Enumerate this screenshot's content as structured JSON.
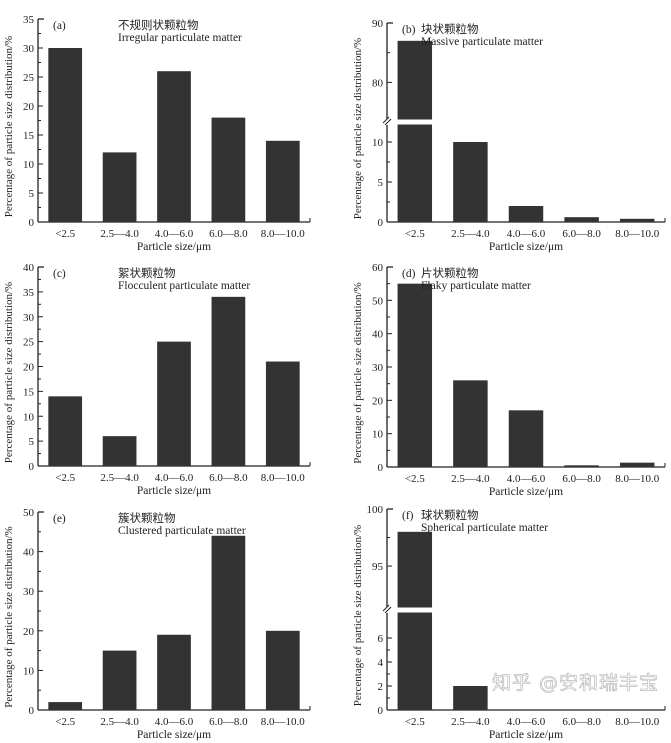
{
  "chart_data": [
    {
      "type": "bar",
      "panel": "(a)",
      "title_cn": "不规则状颗粒物",
      "title": "Irregular particulate matter",
      "categories": [
        "<2.5",
        "2.5—4.0",
        "4.0—6.0",
        "6.0—8.0",
        "8.0—10.0"
      ],
      "values": [
        30,
        12,
        26,
        18,
        14
      ],
      "xlabel": "Particle size/μm",
      "ylabel": "Percentage of particle size distribution/%",
      "ylim": [
        0,
        35
      ],
      "yticks": [
        0,
        5,
        10,
        15,
        20,
        25,
        30,
        35
      ]
    },
    {
      "type": "bar",
      "panel": "(b)",
      "title_cn": "块状颗粒物",
      "title": "Massive particulate matter",
      "categories": [
        "<2.5",
        "2.5—4.0",
        "4.0—6.0",
        "6.0—8.0",
        "8.0—10.0"
      ],
      "values": [
        87,
        10,
        2,
        0.6,
        0.4
      ],
      "xlabel": "Particle size/μm",
      "ylabel": "Percentage of particle size distribution/%",
      "ylim": [
        0,
        90
      ],
      "axis_break": [
        12,
        74
      ],
      "yticks": [
        0,
        5,
        10,
        80,
        90
      ]
    },
    {
      "type": "bar",
      "panel": "(c)",
      "title_cn": "絮状颗粒物",
      "title": "Flocculent particulate matter",
      "categories": [
        "<2.5",
        "2.5—4.0",
        "4.0—6.0",
        "6.0—8.0",
        "8.0—10.0"
      ],
      "values": [
        14,
        6,
        25,
        34,
        21
      ],
      "xlabel": "Particle size/μm",
      "ylabel": "Percentage of particle size distribution/%",
      "ylim": [
        0,
        40
      ],
      "yticks": [
        0,
        5,
        10,
        15,
        20,
        25,
        30,
        35,
        40
      ]
    },
    {
      "type": "bar",
      "panel": "(d)",
      "title_cn": "片状颗粒物",
      "title": "Flaky particulate matter",
      "categories": [
        "<2.5",
        "2.5—4.0",
        "4.0—6.0",
        "6.0—8.0",
        "8.0—10.0"
      ],
      "values": [
        55,
        26,
        17,
        0.5,
        1.3
      ],
      "xlabel": "Particle size/μm",
      "ylabel": "Percentage of particle size distribution/%",
      "ylim": [
        0,
        60
      ],
      "yticks": [
        0,
        10,
        20,
        30,
        40,
        50,
        60
      ]
    },
    {
      "type": "bar",
      "panel": "(e)",
      "title_cn": "簇状颗粒物",
      "title": "Clustered particulate matter",
      "categories": [
        "<2.5",
        "2.5—4.0",
        "4.0—6.0",
        "6.0—8.0",
        "8.0—10.0"
      ],
      "values": [
        2,
        15,
        19,
        44,
        20
      ],
      "xlabel": "Particle size/μm",
      "ylabel": "Percentage of particle size distribution/%",
      "ylim": [
        0,
        50
      ],
      "yticks": [
        0,
        10,
        20,
        30,
        40,
        50
      ]
    },
    {
      "type": "bar",
      "panel": "(f)",
      "title_cn": "球状颗粒物",
      "title": "Spherical particulate matter",
      "categories": [
        "<2.5",
        "2.5—4.0",
        "4.0—6.0",
        "6.0—8.0",
        "8.0—10.0"
      ],
      "values": [
        98,
        2,
        0,
        0,
        0
      ],
      "xlabel": "Particle size/μm",
      "ylabel": "Percentage of particle size distribution/%",
      "ylim": [
        0,
        100
      ],
      "axis_break": [
        8,
        91.5
      ],
      "yticks": [
        0,
        2,
        4,
        6,
        95,
        100
      ]
    }
  ],
  "colors": {
    "bar": "#333333",
    "axis": "#222222"
  },
  "watermark": "知乎 @安和瑞丰宝"
}
